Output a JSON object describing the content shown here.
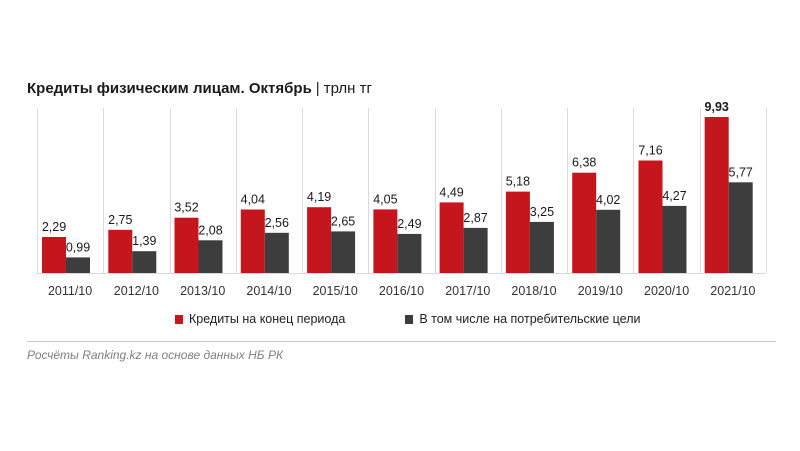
{
  "header": {
    "title": "Кредиты физическим лицам. Октябрь",
    "separator": "|",
    "unit": "трлн тг"
  },
  "legend": {
    "series1_label": "Кредиты на конец периода",
    "series2_label": "В том числе на потребительские цели"
  },
  "source": {
    "text": "Росчёты Ranking.kz на основе данных НБ РК"
  },
  "colors": {
    "series1": "#c5161d",
    "series2": "#3d3d3d",
    "grid": "#d9d9d9",
    "divider": "#c9c9c9"
  },
  "chart_data": {
    "type": "bar",
    "title": "Кредиты физическим лицам. Октябрь",
    "ylabel": "трлн тг",
    "xlabel": "",
    "ylim": [
      0,
      10.5
    ],
    "grid": "vertical separators between categories",
    "legend_position": "bottom",
    "categories": [
      "2011/10",
      "2012/10",
      "2013/10",
      "2014/10",
      "2015/10",
      "2016/10",
      "2017/10",
      "2018/10",
      "2019/10",
      "2020/10",
      "2021/10"
    ],
    "series": [
      {
        "name": "Кредиты на конец периода",
        "values": [
          2.29,
          2.75,
          3.52,
          4.04,
          4.19,
          4.05,
          4.49,
          5.18,
          6.38,
          7.16,
          9.93
        ],
        "labels": [
          "2,29",
          "2,75",
          "3,52",
          "4,04",
          "4,19",
          "4,05",
          "4,49",
          "5,18",
          "6,38",
          "7,16",
          "9,93"
        ]
      },
      {
        "name": "В том числе на потребительские цели",
        "values": [
          0.99,
          1.39,
          2.08,
          2.56,
          2.65,
          2.49,
          2.87,
          3.25,
          4.02,
          4.27,
          5.77
        ],
        "labels": [
          "0,99",
          "1,39",
          "2,08",
          "2,56",
          "2,65",
          "2,49",
          "2,87",
          "3,25",
          "4,02",
          "4,27",
          "5,77"
        ]
      }
    ]
  }
}
